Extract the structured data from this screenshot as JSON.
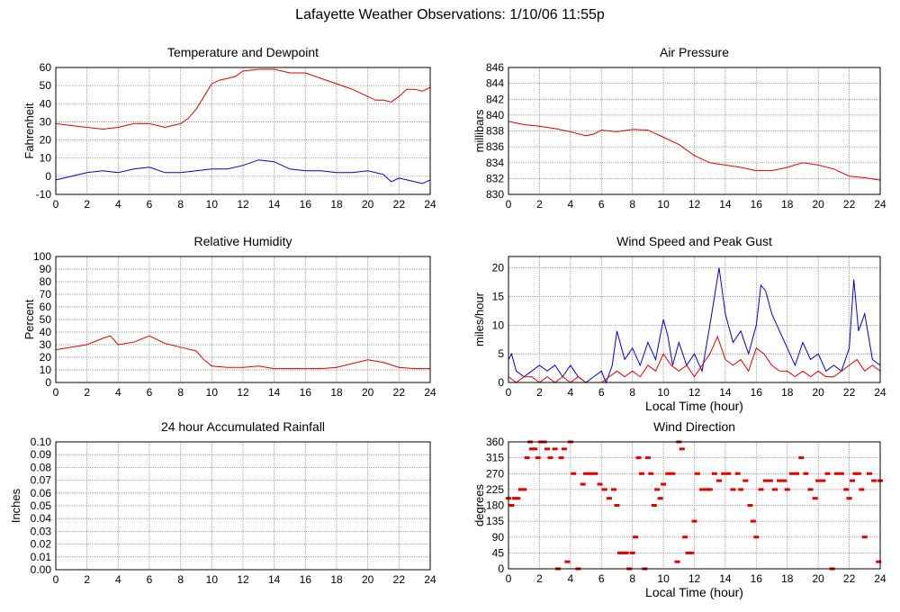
{
  "page": {
    "title": "Lafayette Weather Observations: 1/10/06 11:55p"
  },
  "colors": {
    "primary_series": "#e00000",
    "secondary_series": "#0000cc",
    "grid": "#888888",
    "axis": "#000000"
  },
  "chart_data": [
    {
      "id": "temperature",
      "type": "line",
      "title": "Temperature and Dewpoint",
      "xlabel": "",
      "ylabel": "Fahrenheit",
      "xlim": [
        0,
        24
      ],
      "ylim": [
        -10,
        60
      ],
      "xticks": [
        0,
        2,
        4,
        6,
        8,
        10,
        12,
        14,
        16,
        18,
        20,
        22,
        24
      ],
      "yticks": [
        -10,
        0,
        10,
        20,
        30,
        40,
        50,
        60
      ],
      "grid": true,
      "series": [
        {
          "color": "#e00000",
          "x": [
            0,
            1,
            2,
            3,
            4,
            5,
            6,
            7,
            8,
            8.5,
            9,
            9.5,
            10,
            10.5,
            11,
            11.5,
            12,
            13,
            14,
            15,
            16,
            17,
            18,
            19,
            20,
            20.5,
            21,
            21.5,
            22,
            22.5,
            23,
            23.5,
            24
          ],
          "values": [
            29,
            28,
            27,
            26,
            27,
            29,
            29,
            27,
            29,
            32,
            37,
            44,
            51,
            53,
            54,
            55,
            58,
            59,
            59,
            57,
            57,
            54,
            51,
            48,
            44,
            42,
            42,
            41,
            44,
            48,
            48,
            47,
            49
          ]
        },
        {
          "color": "#0000cc",
          "x": [
            0,
            1,
            2,
            3,
            4,
            5,
            6,
            7,
            8,
            9,
            10,
            11,
            12,
            13,
            14,
            15,
            16,
            17,
            18,
            19,
            20,
            21,
            21.5,
            22,
            22.5,
            23,
            23.5,
            24
          ],
          "values": [
            -2,
            0,
            2,
            3,
            2,
            4,
            5,
            2,
            2,
            3,
            4,
            4,
            6,
            9,
            8,
            4,
            3,
            3,
            2,
            2,
            3,
            1,
            -3,
            -1,
            -2,
            -3,
            -4,
            -2
          ]
        }
      ]
    },
    {
      "id": "pressure",
      "type": "line",
      "title": "Air Pressure",
      "xlabel": "",
      "ylabel": "millibars",
      "xlim": [
        0,
        24
      ],
      "ylim": [
        830,
        846
      ],
      "xticks": [
        0,
        2,
        4,
        6,
        8,
        10,
        12,
        14,
        16,
        18,
        20,
        22,
        24
      ],
      "yticks": [
        830,
        832,
        834,
        836,
        838,
        840,
        842,
        844,
        846
      ],
      "grid": true,
      "series": [
        {
          "color": "#e00000",
          "x": [
            0,
            1,
            2,
            3,
            4,
            5,
            5.5,
            6,
            7,
            8,
            9,
            10,
            11,
            12,
            13,
            14,
            15,
            16,
            17,
            18,
            19,
            20,
            21,
            22,
            23,
            24
          ],
          "values": [
            839.2,
            838.8,
            838.6,
            838.3,
            837.9,
            837.4,
            837.6,
            838.1,
            837.9,
            838.2,
            838.1,
            837.2,
            836.3,
            834.9,
            834.0,
            833.7,
            833.4,
            833.0,
            833.0,
            833.4,
            834.0,
            833.7,
            833.2,
            832.3,
            832.1,
            831.8
          ]
        }
      ]
    },
    {
      "id": "humidity",
      "type": "line",
      "title": "Relative Humidity",
      "xlabel": "",
      "ylabel": "Percent",
      "xlim": [
        0,
        24
      ],
      "ylim": [
        0,
        100
      ],
      "xticks": [
        0,
        2,
        4,
        6,
        8,
        10,
        12,
        14,
        16,
        18,
        20,
        22,
        24
      ],
      "yticks": [
        0,
        10,
        20,
        30,
        40,
        50,
        60,
        70,
        80,
        90,
        100
      ],
      "grid": true,
      "series": [
        {
          "color": "#e00000",
          "x": [
            0,
            1,
            2,
            3,
            3.5,
            4,
            5,
            6,
            7,
            8,
            9,
            9.5,
            10,
            11,
            12,
            13,
            14,
            15,
            16,
            17,
            18,
            19,
            20,
            21,
            22,
            23,
            24
          ],
          "values": [
            26,
            28,
            30,
            35,
            37,
            30,
            32,
            37,
            31,
            28,
            25,
            18,
            13,
            12,
            12,
            13,
            11,
            11,
            11,
            11,
            12,
            15,
            18,
            16,
            12,
            11,
            11
          ]
        }
      ]
    },
    {
      "id": "wind-speed",
      "type": "line",
      "title": "Wind Speed and Peak Gust",
      "xlabel": "Local Time (hour)",
      "ylabel": "miles/hour",
      "xlim": [
        0,
        24
      ],
      "ylim": [
        0,
        22
      ],
      "xticks": [
        0,
        2,
        4,
        6,
        8,
        10,
        12,
        14,
        16,
        18,
        20,
        22,
        24
      ],
      "yticks": [
        0,
        5,
        10,
        15,
        20
      ],
      "grid": true,
      "series": [
        {
          "color": "#0000cc",
          "x": [
            0,
            0.2,
            0.5,
            1,
            1.5,
            2,
            2.5,
            3,
            3.5,
            4,
            4.5,
            5,
            5.5,
            6,
            6.3,
            6.7,
            7,
            7.5,
            8,
            8.5,
            9,
            9.5,
            10,
            10.3,
            10.6,
            11,
            11.5,
            12,
            12.5,
            13,
            13.3,
            13.6,
            14,
            14.5,
            15,
            15.5,
            16,
            16.3,
            16.6,
            17,
            17.5,
            18,
            18.5,
            19,
            19.5,
            20,
            20.5,
            21,
            21.5,
            22,
            22.3,
            22.6,
            23,
            23.5,
            24
          ],
          "values": [
            4,
            5,
            2,
            1,
            2,
            3,
            2,
            3,
            1,
            3,
            1,
            0,
            1,
            2,
            0,
            3,
            9,
            4,
            6,
            3,
            7,
            4,
            11,
            8,
            3,
            7,
            3,
            5,
            2,
            10,
            15,
            20,
            12,
            7,
            9,
            5,
            10,
            17,
            16,
            12,
            9,
            6,
            3,
            7,
            4,
            5,
            2,
            3,
            2,
            6,
            18,
            9,
            12,
            4,
            3
          ]
        },
        {
          "color": "#e00000",
          "x": [
            0,
            0.5,
            1,
            1.5,
            2,
            2.5,
            3,
            3.5,
            4,
            4.5,
            5,
            5.5,
            6,
            6.5,
            7,
            7.5,
            8,
            8.5,
            9,
            9.5,
            10,
            10.5,
            11,
            11.5,
            12,
            12.5,
            13,
            13.5,
            14,
            14.5,
            15,
            15.5,
            16,
            16.5,
            17,
            17.5,
            18,
            18.5,
            19,
            19.5,
            20,
            20.5,
            21,
            21.5,
            22,
            22.5,
            23,
            23.5,
            24
          ],
          "values": [
            1,
            0,
            1,
            1,
            0,
            1,
            0,
            1,
            0,
            1,
            0,
            0,
            0,
            1,
            2,
            1,
            2,
            1,
            3,
            2,
            5,
            3,
            2,
            3,
            1,
            3,
            5,
            8,
            4,
            3,
            4,
            2,
            6,
            5,
            3,
            2,
            2,
            1,
            2,
            1,
            2,
            1,
            1,
            2,
            3,
            4,
            2,
            3,
            2
          ]
        }
      ]
    },
    {
      "id": "rainfall",
      "type": "line",
      "title": "24 hour Accumulated Rainfall",
      "xlabel": "",
      "ylabel": "Inches",
      "xlim": [
        0,
        24
      ],
      "ylim": [
        0,
        0.1
      ],
      "xticks": [
        0,
        2,
        4,
        6,
        8,
        10,
        12,
        14,
        16,
        18,
        20,
        22,
        24
      ],
      "yticks": [
        "0.00",
        "0.01",
        "0.02",
        "0.03",
        "0.04",
        "0.05",
        "0.06",
        "0.07",
        "0.08",
        "0.09",
        "0.10"
      ],
      "grid": true,
      "series": [
        {
          "color": "#e00000",
          "x": [
            0,
            24
          ],
          "values": [
            0,
            0
          ]
        }
      ]
    },
    {
      "id": "wind-direction",
      "type": "scatter",
      "title": "Wind Direction",
      "xlabel": "Local Time (hour)",
      "ylabel": "degrees",
      "xlim": [
        0,
        24
      ],
      "ylim": [
        0,
        360
      ],
      "xticks": [
        0,
        2,
        4,
        6,
        8,
        10,
        12,
        14,
        16,
        18,
        20,
        22,
        24
      ],
      "yticks": [
        0,
        45,
        90,
        135,
        180,
        225,
        270,
        315,
        360
      ],
      "grid": true,
      "series": [
        {
          "color": "#e00000",
          "x": [
            0,
            0.2,
            0.4,
            0.6,
            0.8,
            1.0,
            1.2,
            1.4,
            1.5,
            1.7,
            1.9,
            2.1,
            2.3,
            2.5,
            2.7,
            3.0,
            3.2,
            3.4,
            3.6,
            3.8,
            4.0,
            4.2,
            4.5,
            4.8,
            5.0,
            5.3,
            5.6,
            5.9,
            6.2,
            6.5,
            6.8,
            7.0,
            7.2,
            7.4,
            7.6,
            7.8,
            8.0,
            8.2,
            8.4,
            8.6,
            8.8,
            9.0,
            9.2,
            9.4,
            9.6,
            9.8,
            10.0,
            10.3,
            10.6,
            10.9,
            11.0,
            11.2,
            11.4,
            11.6,
            11.8,
            12.0,
            12.2,
            12.5,
            12.8,
            13.0,
            13.3,
            13.6,
            13.9,
            14.2,
            14.5,
            14.8,
            15.0,
            15.3,
            15.6,
            15.8,
            16.0,
            16.3,
            16.6,
            16.9,
            17.2,
            17.5,
            17.8,
            18.0,
            18.3,
            18.6,
            18.9,
            19.2,
            19.5,
            19.8,
            20.0,
            20.3,
            20.6,
            20.9,
            21.2,
            21.5,
            21.8,
            22.0,
            22.2,
            22.4,
            22.6,
            22.8,
            23.0,
            23.3,
            23.6,
            23.9,
            24.0
          ],
          "values": [
            200,
            180,
            200,
            200,
            225,
            225,
            315,
            360,
            340,
            340,
            315,
            360,
            360,
            340,
            315,
            340,
            0,
            315,
            340,
            20,
            360,
            270,
            0,
            240,
            270,
            270,
            270,
            240,
            225,
            200,
            225,
            180,
            45,
            45,
            45,
            0,
            45,
            90,
            315,
            270,
            0,
            315,
            270,
            180,
            225,
            200,
            240,
            270,
            270,
            20,
            360,
            340,
            90,
            45,
            45,
            135,
            270,
            225,
            225,
            225,
            270,
            250,
            270,
            270,
            225,
            270,
            225,
            250,
            180,
            135,
            90,
            225,
            250,
            250,
            225,
            250,
            250,
            225,
            270,
            270,
            315,
            270,
            225,
            200,
            250,
            250,
            270,
            0,
            270,
            270,
            225,
            200,
            250,
            270,
            270,
            225,
            90,
            270,
            250,
            20,
            250
          ]
        }
      ]
    }
  ]
}
